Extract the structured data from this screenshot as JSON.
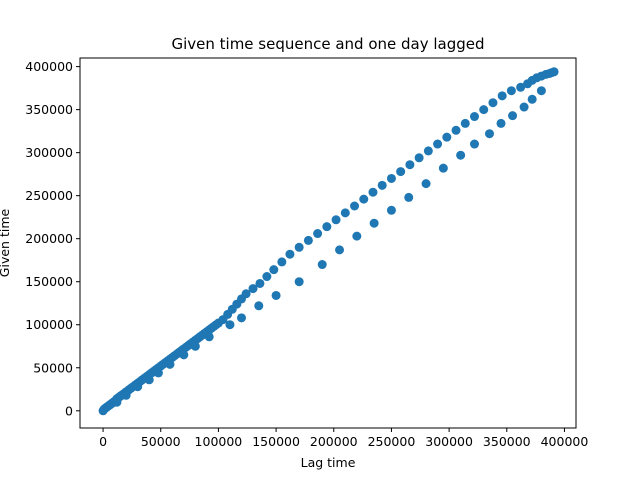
{
  "chart_data": {
    "type": "scatter",
    "title": "Given time sequence and one day lagged",
    "xlabel": "Lag time",
    "ylabel": "Given time",
    "xlim": [
      -20000,
      410000
    ],
    "ylim": [
      -20000,
      410000
    ],
    "xticks": [
      0,
      50000,
      100000,
      150000,
      200000,
      250000,
      300000,
      350000,
      400000
    ],
    "yticks": [
      0,
      50000,
      100000,
      150000,
      200000,
      250000,
      300000,
      350000,
      400000
    ],
    "grid": false,
    "marker_color": "#1f77b4",
    "series": [
      {
        "x": [
          0,
          1000,
          2000,
          3000,
          4000,
          5000,
          6000,
          7000,
          8000,
          9000,
          10000,
          11000,
          12000,
          13000,
          14000,
          15000,
          16000,
          18000,
          20000,
          22000,
          24000,
          26000,
          28000,
          30000,
          32000,
          34000,
          36000,
          38000,
          40000,
          42000,
          44000,
          46000,
          48000,
          50000,
          52000,
          54000,
          56000,
          58000,
          60000,
          62000,
          64000,
          66000,
          68000,
          70000,
          72000,
          74000,
          76000,
          78000,
          80000,
          82000,
          84000,
          86000,
          88000,
          90000,
          92000,
          94000,
          96000,
          98000,
          100000,
          104000,
          108000,
          112000,
          116000,
          120000,
          124000,
          130000,
          136000,
          142000,
          148000,
          155000,
          162000,
          170000,
          178000,
          186000,
          194000,
          202000,
          210000,
          218000,
          226000,
          234000,
          242000,
          250000,
          258000,
          266000,
          274000,
          282000,
          290000,
          298000,
          306000,
          314000,
          322000,
          330000,
          338000,
          346000,
          354000,
          362000,
          368000,
          372000,
          376000,
          380000,
          384000,
          387000,
          389000,
          391000,
          12000,
          20000,
          30000,
          40000,
          48000,
          58000,
          70000,
          80000,
          92000,
          110000,
          120000,
          135000,
          150000,
          170000,
          190000,
          205000,
          220000,
          235000,
          250000,
          265000,
          280000,
          295000,
          310000,
          322000,
          335000,
          345000,
          355000,
          365000,
          372000,
          380000
        ],
        "y": [
          0,
          2000,
          3000,
          4000,
          5000,
          6000,
          7000,
          8000,
          9000,
          10000,
          11000,
          12000,
          14000,
          15000,
          16000,
          17000,
          18000,
          20000,
          22000,
          24000,
          26000,
          28000,
          30000,
          32000,
          34000,
          36000,
          38000,
          40000,
          42000,
          44000,
          46000,
          48000,
          50000,
          52000,
          54000,
          56000,
          58000,
          60000,
          62000,
          64000,
          66000,
          68000,
          70000,
          72000,
          74000,
          76000,
          78000,
          80000,
          82000,
          84000,
          86000,
          88000,
          90000,
          92000,
          94000,
          96000,
          98000,
          100000,
          102000,
          106000,
          112000,
          118000,
          124000,
          130000,
          136000,
          142000,
          148000,
          156000,
          164000,
          173000,
          182000,
          190000,
          198000,
          206000,
          214000,
          222000,
          230000,
          238000,
          246000,
          254000,
          262000,
          270000,
          278000,
          286000,
          294000,
          302000,
          310000,
          318000,
          326000,
          334000,
          342000,
          350000,
          358000,
          366000,
          372000,
          376000,
          380000,
          384000,
          387000,
          389000,
          391000,
          392000,
          393000,
          394000,
          10000,
          18000,
          28000,
          36000,
          44000,
          54000,
          65000,
          75000,
          86000,
          100000,
          108000,
          122000,
          134000,
          150000,
          170000,
          187000,
          203000,
          218000,
          233000,
          248000,
          264000,
          282000,
          297000,
          310000,
          322000,
          334000,
          343000,
          353000,
          362000,
          372000
        ]
      }
    ]
  }
}
